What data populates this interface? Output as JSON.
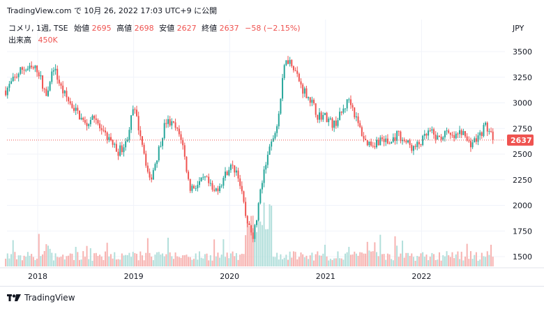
{
  "header": {
    "caption": "TradingView.com で 10月 26, 2022 17:03 UTC+9 に公開"
  },
  "legend": {
    "symbol": "コメリ, 1週, TSE",
    "open_label": "始値",
    "open_value": "2695",
    "high_label": "高値",
    "high_value": "2698",
    "low_label": "安値",
    "low_value": "2627",
    "close_label": "終値",
    "close_value": "2637",
    "change": "−58 (−2.15%)",
    "volume_label": "出来高",
    "volume_value": "450K"
  },
  "footer": {
    "brand": "TradingView"
  },
  "colors": {
    "up": "#26a69a",
    "down": "#ef5350",
    "up_vol": "#b2dfdb",
    "down_vol": "#f7b3b1",
    "grid": "#f0f3fa",
    "text": "#131722"
  },
  "chart_data": {
    "type": "candlestick",
    "timeframe": "1週",
    "currency": "JPY",
    "y_ticks": [
      3500,
      3250,
      3000,
      2750,
      2500,
      2250,
      2000,
      1750,
      1500
    ],
    "x_ticks": [
      "2018",
      "2019",
      "2020",
      "2021",
      "2022"
    ],
    "ylim": [
      1400,
      3640
    ],
    "last_price": 2637,
    "anchors": [
      [
        "2017-09",
        3120
      ],
      [
        "2017-11",
        3330
      ],
      [
        "2018-01",
        3330
      ],
      [
        "2018-02",
        3080
      ],
      [
        "2018-03",
        3350
      ],
      [
        "2018-04",
        3130
      ],
      [
        "2018-05",
        3000
      ],
      [
        "2018-06",
        2900
      ],
      [
        "2018-07",
        2780
      ],
      [
        "2018-08",
        2900
      ],
      [
        "2018-09",
        2700
      ],
      [
        "2018-10",
        2650
      ],
      [
        "2018-11",
        2520
      ],
      [
        "2018-12",
        2600
      ],
      [
        "2019-01",
        2950
      ],
      [
        "2019-02",
        2650
      ],
      [
        "2019-03",
        2230
      ],
      [
        "2019-04",
        2500
      ],
      [
        "2019-05",
        2820
      ],
      [
        "2019-06",
        2780
      ],
      [
        "2019-07",
        2650
      ],
      [
        "2019-08",
        2170
      ],
      [
        "2019-09",
        2200
      ],
      [
        "2019-10",
        2260
      ],
      [
        "2019-11",
        2120
      ],
      [
        "2019-12",
        2230
      ],
      [
        "2020-01",
        2380
      ],
      [
        "2020-02",
        2330
      ],
      [
        "2020-03",
        1900
      ],
      [
        "2020-04",
        1700
      ],
      [
        "2020-05",
        2200
      ],
      [
        "2020-06",
        2550
      ],
      [
        "2020-07",
        2800
      ],
      [
        "2020-08",
        3450
      ],
      [
        "2020-09",
        3360
      ],
      [
        "2020-10",
        3150
      ],
      [
        "2020-11",
        3050
      ],
      [
        "2020-12",
        2880
      ],
      [
        "2021-01",
        2870
      ],
      [
        "2021-02",
        2780
      ],
      [
        "2021-03",
        2900
      ],
      [
        "2021-04",
        3050
      ],
      [
        "2021-05",
        2800
      ],
      [
        "2021-06",
        2620
      ],
      [
        "2021-07",
        2600
      ],
      [
        "2021-08",
        2650
      ],
      [
        "2021-09",
        2600
      ],
      [
        "2021-10",
        2700
      ],
      [
        "2021-11",
        2620
      ],
      [
        "2021-12",
        2550
      ],
      [
        "2022-01",
        2620
      ],
      [
        "2022-02",
        2720
      ],
      [
        "2022-03",
        2650
      ],
      [
        "2022-04",
        2700
      ],
      [
        "2022-05",
        2650
      ],
      [
        "2022-06",
        2720
      ],
      [
        "2022-07",
        2600
      ],
      [
        "2022-08",
        2650
      ],
      [
        "2022-09",
        2780
      ],
      [
        "2022-10",
        2637
      ]
    ]
  }
}
